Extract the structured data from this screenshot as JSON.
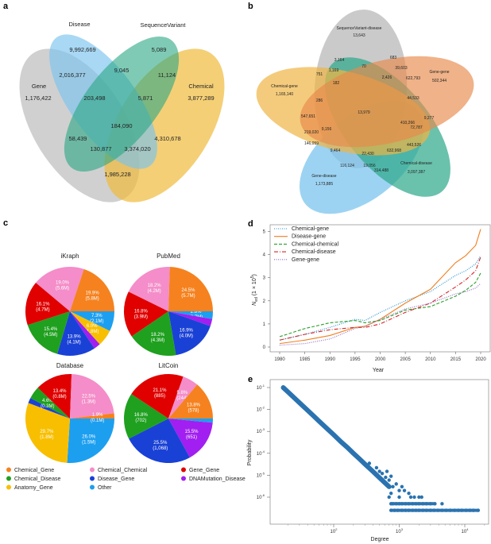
{
  "panel_letters": {
    "a": "a",
    "b": "b",
    "c": "c",
    "d": "d",
    "e": "e"
  },
  "panel_a": {
    "sets": [
      {
        "name": "Gene",
        "count": "1,176,422",
        "color": "#c4c4c4"
      },
      {
        "name": "Disease",
        "count": "9,992,669",
        "color": "#79c3ee"
      },
      {
        "name": "SequenceVariant",
        "count": "5,089",
        "color": "#2aa683"
      },
      {
        "name": "Chemical",
        "count": "3,877,289",
        "color": "#efbb3c"
      }
    ],
    "regions": [
      "2,016,377",
      "9,045",
      "11,124",
      "203,498",
      "5,871",
      "184,090",
      "58,439",
      "4,310,678",
      "130,877",
      "3,374,020",
      "1,985,228"
    ]
  },
  "panel_b": {
    "sets": [
      {
        "name": "SequenceVariant-disease",
        "count": "13,643",
        "color": "#bdbdbd"
      },
      {
        "name": "Chemical-gene",
        "count": "1,165,140",
        "color": "#efb545"
      },
      {
        "name": "Gene-gene",
        "count": "502,344",
        "color": "#e8894a"
      },
      {
        "name": "Chemical-disease",
        "count": "3,097,387",
        "color": "#2ba889"
      },
      {
        "name": "Gene-disease",
        "count": "1,173,885",
        "color": "#7cc4ee"
      }
    ],
    "regions": [
      "3,164",
      "70",
      "683",
      "39,603",
      "751",
      "1,169",
      "2,426",
      "622,793",
      "182",
      "286",
      "44,533",
      "13,979",
      "547,651",
      "9,277",
      "410,266",
      "72,787",
      "219,020",
      "9,156",
      "146,059",
      "9,464",
      "22,430",
      "632,968",
      "443,526",
      "116,124",
      "19,056",
      "314,488"
    ]
  },
  "chart_data": [
    {
      "type": "pie",
      "panel": "c",
      "legend": [
        {
          "name": "Chemical_Gene",
          "color": "#f5821f"
        },
        {
          "name": "Chemical_Disease",
          "color": "#1fa01f"
        },
        {
          "name": "Anatomy_Gene",
          "color": "#f8bf00"
        },
        {
          "name": "Chemical_Chemical",
          "color": "#f48dc9"
        },
        {
          "name": "Disease_Gene",
          "color": "#1a41d6"
        },
        {
          "name": "Other",
          "color": "#1d9ff0"
        },
        {
          "name": "Gene_Gene",
          "color": "#e00000"
        },
        {
          "name": "DNAMutation_Disease",
          "color": "#a11ff0"
        }
      ],
      "pies": [
        {
          "title": "iKraph",
          "slices": [
            {
              "category": "Other",
              "value": 7.3,
              "pct": "7.3%",
              "amount": "(2.1M)"
            },
            {
              "category": "Anatomy_Gene",
              "value": 6.0,
              "pct": "6.0%",
              "amount": "(1.8M)"
            },
            {
              "category": "DNAMutation_Disease",
              "value": 2.4
            },
            {
              "category": "Disease_Gene",
              "value": 13.9,
              "pct": "13.9%",
              "amount": "(4.1M)"
            },
            {
              "category": "Chemical_Disease",
              "value": 15.4,
              "pct": "15.4%",
              "amount": "(4.5M)"
            },
            {
              "category": "Gene_Gene",
              "value": 16.1,
              "pct": "16.1%",
              "amount": "(4.7M)"
            },
            {
              "category": "Chemical_Chemical",
              "value": 19.0,
              "pct": "19.0%",
              "amount": "(5.6M)"
            },
            {
              "category": "Chemical_Gene",
              "value": 19.9,
              "pct": "19.9%",
              "amount": "(5.8M)"
            }
          ]
        },
        {
          "title": "PubMed",
          "slices": [
            {
              "category": "Other",
              "value": 2.8,
              "pct": "2.8%",
              "amount": "(0.7M)"
            },
            {
              "category": "DNAMutation_Disease",
              "value": 2.6
            },
            {
              "category": "Disease_Gene",
              "value": 16.9,
              "pct": "16.9%",
              "amount": "(4.0M)"
            },
            {
              "category": "Chemical_Disease",
              "value": 18.2,
              "pct": "18.2%",
              "amount": "(4.3M)"
            },
            {
              "category": "Gene_Gene",
              "value": 16.8,
              "pct": "16.8%",
              "amount": "(3.9M)"
            },
            {
              "category": "Chemical_Chemical",
              "value": 18.2,
              "pct": "18.2%",
              "amount": "(4.2M)"
            },
            {
              "category": "Chemical_Gene",
              "value": 24.5,
              "pct": "24.5%",
              "amount": "(5.7M)"
            }
          ]
        },
        {
          "title": "Database",
          "slices": [
            {
              "category": "Other",
              "value": 26.0,
              "pct": "26.0%",
              "amount": "(1.5M)"
            },
            {
              "category": "Anatomy_Gene",
              "value": 29.7,
              "pct": "29.7%",
              "amount": "(1.8M)"
            },
            {
              "category": "Disease_Gene",
              "value": 1.9
            },
            {
              "category": "Chemical_Disease",
              "value": 4.6,
              "pct": "4.6%",
              "amount": "(0.3M)"
            },
            {
              "category": "Gene_Gene",
              "value": 13.4,
              "pct": "13.4%",
              "amount": "(0.8M)"
            },
            {
              "category": "Chemical_Chemical",
              "value": 22.5,
              "pct": "22.5%",
              "amount": "(1.3M)"
            },
            {
              "category": "Chemical_Gene",
              "value": 1.9,
              "pct": "1.9%",
              "amount": "(0.1M)"
            }
          ]
        },
        {
          "title": "LitCoin",
          "slices": [
            {
              "category": "Other",
              "value": 1.5
            },
            {
              "category": "DNAMutation_Disease",
              "value": 15.5,
              "pct": "15.5%",
              "amount": "(651)"
            },
            {
              "category": "Disease_Gene",
              "value": 25.5,
              "pct": "25.5%",
              "amount": "(1,068)"
            },
            {
              "category": "Chemical_Disease",
              "value": 16.8,
              "pct": "16.8%",
              "amount": "(702)"
            },
            {
              "category": "Gene_Gene",
              "value": 21.1,
              "pct": "21.1%",
              "amount": "(885)"
            },
            {
              "category": "Chemical_Chemical",
              "value": 5.8,
              "pct": "5.8%",
              "amount": "(244)"
            },
            {
              "category": "Chemical_Gene",
              "value": 13.8,
              "pct": "13.8%",
              "amount": "(578)"
            }
          ]
        }
      ]
    },
    {
      "type": "line",
      "panel": "d",
      "xlabel": "Year",
      "ylabel": {
        "main": "N",
        "sub": "ed",
        "unit": " (1 × 10",
        "exp": "5",
        "close": ")"
      },
      "xlim": [
        1980,
        2020
      ],
      "ylim": [
        0,
        5
      ],
      "xticks": [
        1980,
        1985,
        1990,
        1995,
        2000,
        2005,
        2010,
        2015,
        2020
      ],
      "yticks": [
        0,
        1,
        2,
        3,
        4,
        5
      ],
      "legend_position": "top-left",
      "x": [
        1980,
        1985,
        1990,
        1995,
        1997,
        2000,
        2005,
        2010,
        2015,
        2017,
        2019,
        2020
      ],
      "series": [
        {
          "name": "Chemical-gene",
          "color": "#1f8fd0",
          "style": "dotted",
          "values": [
            0.3,
            0.55,
            0.85,
            1.2,
            1.15,
            1.5,
            2.0,
            2.4,
            3.1,
            3.3,
            3.6,
            3.95
          ]
        },
        {
          "name": "Disease-gene",
          "color": "#f07f1e",
          "style": "solid",
          "values": [
            0.15,
            0.3,
            0.5,
            0.85,
            0.9,
            1.2,
            1.9,
            2.5,
            3.65,
            3.95,
            4.4,
            5.1
          ]
        },
        {
          "name": "Chemical-chemical",
          "color": "#2ca02c",
          "style": "dashed",
          "values": [
            0.45,
            0.8,
            1.05,
            1.15,
            1.05,
            1.15,
            1.6,
            1.75,
            2.2,
            2.45,
            2.8,
            3.2
          ]
        },
        {
          "name": "Chemical-disease",
          "color": "#d62728",
          "style": "dashdot",
          "values": [
            0.3,
            0.55,
            0.75,
            0.85,
            0.85,
            1.0,
            1.5,
            1.9,
            2.6,
            2.9,
            3.3,
            3.9
          ]
        },
        {
          "name": "Gene-gene",
          "color": "#9467bd",
          "style": "dotted",
          "values": [
            0.08,
            0.15,
            0.35,
            0.8,
            0.9,
            1.2,
            1.65,
            1.9,
            2.3,
            2.4,
            2.55,
            2.75
          ]
        }
      ]
    },
    {
      "type": "scatter",
      "panel": "e",
      "xlabel": "Degree",
      "ylabel": "Probability",
      "xscale": "log",
      "yscale": "log",
      "xlim": [
        11,
        23000
      ],
      "ylim": [
        6e-08,
        0.23
      ],
      "xticks": [
        {
          "base": "10",
          "exp": "2",
          "value": 100
        },
        {
          "base": "10",
          "exp": "3",
          "value": 1000
        },
        {
          "base": "10",
          "exp": "4",
          "value": 10000
        }
      ],
      "yticks": [
        {
          "base": "10",
          "exp": "-1",
          "value": 0.1
        },
        {
          "base": "10",
          "exp": "-2",
          "value": 0.01
        },
        {
          "base": "10",
          "exp": "-3",
          "value": 0.001
        },
        {
          "base": "10",
          "exp": "-4",
          "value": 0.0001
        },
        {
          "base": "10",
          "exp": "-5",
          "value": 1e-05
        },
        {
          "base": "10",
          "exp": "-6",
          "value": 1e-06
        }
      ],
      "color": "#2a73b0",
      "main_points": [
        [
          17,
          0.1
        ],
        [
          20,
          0.0635
        ],
        [
          25,
          0.034
        ],
        [
          30,
          0.0204
        ],
        [
          40,
          0.0091
        ],
        [
          50,
          0.0049
        ],
        [
          60,
          0.0029
        ],
        [
          80,
          0.0013
        ],
        [
          100,
          0.0007
        ],
        [
          130,
          0.00033
        ],
        [
          160,
          0.00019
        ],
        [
          200,
          0.0001
        ],
        [
          250,
          5.4e-05
        ],
        [
          300,
          3.2e-05
        ],
        [
          400,
          1.45e-05
        ],
        [
          500,
          7.7e-06
        ],
        [
          600,
          4.6e-06
        ],
        [
          700,
          3e-06
        ]
      ],
      "tail_points": [
        [
          350,
          3.5e-05
        ],
        [
          450,
          2.2e-05
        ],
        [
          500,
          1.5e-05
        ],
        [
          550,
          1.2e-05
        ],
        [
          620,
          8e-06
        ],
        [
          650,
          1.5e-05
        ],
        [
          700,
          6e-06
        ],
        [
          750,
          9e-06
        ],
        [
          800,
          3e-06
        ],
        [
          900,
          4e-06
        ],
        [
          1000,
          2e-06
        ],
        [
          1100,
          3e-06
        ],
        [
          1200,
          2e-06
        ],
        [
          1400,
          1.5e-06
        ],
        [
          1500,
          1e-06
        ],
        [
          1700,
          1e-06
        ],
        [
          2000,
          1e-06
        ],
        [
          2200,
          1e-06
        ],
        [
          1000,
          1e-06
        ],
        [
          700,
          1e-06
        ],
        [
          750,
          1.5e-06
        ]
      ],
      "floor_points": [
        [
          750,
          5e-07
        ],
        [
          800,
          5e-07
        ],
        [
          900,
          5e-07
        ],
        [
          1000,
          5e-07
        ],
        [
          1100,
          5e-07
        ],
        [
          1250,
          5e-07
        ],
        [
          1400,
          5e-07
        ],
        [
          1600,
          5e-07
        ],
        [
          1800,
          5e-07
        ],
        [
          2000,
          5e-07
        ],
        [
          2300,
          5e-07
        ],
        [
          2600,
          5e-07
        ],
        [
          3000,
          5e-07
        ],
        [
          3500,
          5e-07
        ],
        [
          4500,
          5e-07
        ],
        [
          750,
          2.5e-07
        ],
        [
          850,
          2.5e-07
        ],
        [
          950,
          2.5e-07
        ],
        [
          1100,
          2.5e-07
        ],
        [
          1250,
          2.5e-07
        ],
        [
          1400,
          2.5e-07
        ],
        [
          1600,
          2.5e-07
        ],
        [
          1800,
          2.5e-07
        ],
        [
          2000,
          2.5e-07
        ],
        [
          2300,
          2.5e-07
        ],
        [
          2600,
          2.5e-07
        ],
        [
          3000,
          2.5e-07
        ],
        [
          3400,
          2.5e-07
        ],
        [
          3900,
          2.5e-07
        ],
        [
          4500,
          2.5e-07
        ],
        [
          5200,
          2.5e-07
        ],
        [
          6000,
          2.5e-07
        ],
        [
          7000,
          2.5e-07
        ],
        [
          8000,
          2.5e-07
        ],
        [
          9000,
          2.5e-07
        ],
        [
          10500,
          2.5e-07
        ],
        [
          12000,
          2.5e-07
        ],
        [
          13500,
          2.5e-07
        ],
        [
          16000,
          2.5e-07
        ]
      ]
    }
  ]
}
